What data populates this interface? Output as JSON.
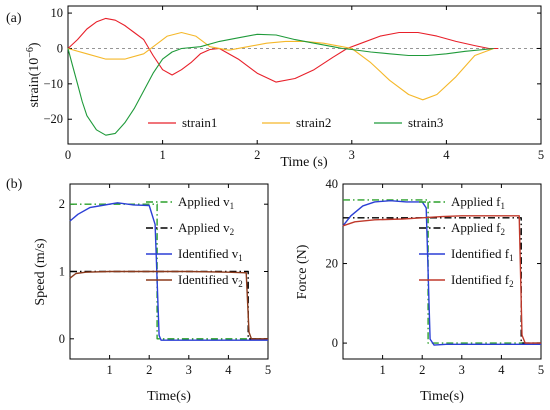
{
  "chart_data": [
    {
      "type": "line",
      "panel_label": "(a)",
      "xlabel": "Time (s)",
      "ylabel": "strain(10",
      "ylabel_exponent": "−6",
      "ylabel_close": ")",
      "xlim": [
        0,
        5
      ],
      "ylim": [
        -27,
        12
      ],
      "xticks": [
        "0",
        "1",
        "2",
        "3",
        "4",
        "5"
      ],
      "yticks": [
        "10",
        "0",
        "−10",
        "−20"
      ],
      "legend_position": "bottom-center",
      "series": [
        {
          "name": "strain1",
          "color": "#e8202a",
          "x": [
            0,
            0.1,
            0.2,
            0.3,
            0.4,
            0.5,
            0.6,
            0.7,
            0.8,
            0.9,
            1.0,
            1.1,
            1.2,
            1.3,
            1.4,
            1.5,
            1.6,
            1.8,
            2.0,
            2.2,
            2.4,
            2.6,
            2.8,
            2.95,
            3.1,
            3.3,
            3.5,
            3.7,
            3.9,
            4.1,
            4.3,
            4.45,
            4.55
          ],
          "y": [
            0,
            2.5,
            5.5,
            7.5,
            8.5,
            8.0,
            6.5,
            4.5,
            2.5,
            -2.0,
            -6.0,
            -7.5,
            -6.0,
            -4.0,
            -1.5,
            -0.3,
            0,
            -3,
            -7,
            -9.5,
            -8.5,
            -6,
            -2.5,
            0,
            1.5,
            3.5,
            4.5,
            4.5,
            3.5,
            2,
            0.8,
            0,
            0
          ]
        },
        {
          "name": "strain2",
          "color": "#f5b82a",
          "x": [
            0,
            0.2,
            0.4,
            0.6,
            0.8,
            0.95,
            1.05,
            1.2,
            1.35,
            1.5,
            1.7,
            1.9,
            2.1,
            2.3,
            2.5,
            2.7,
            2.9,
            3.0,
            3.2,
            3.4,
            3.6,
            3.75,
            3.9,
            4.1,
            4.3,
            4.5
          ],
          "y": [
            0,
            -1.5,
            -3,
            -3,
            -1.5,
            1.5,
            3.5,
            4.5,
            3.5,
            0.5,
            -0.5,
            0.5,
            1.5,
            2.0,
            2.0,
            1.5,
            0.5,
            0,
            -4,
            -9,
            -13,
            -14.5,
            -13,
            -8,
            -2,
            0
          ]
        },
        {
          "name": "strain3",
          "color": "#1f9a3a",
          "x": [
            0,
            0.05,
            0.1,
            0.15,
            0.2,
            0.3,
            0.4,
            0.5,
            0.6,
            0.7,
            0.8,
            0.9,
            1.0,
            1.1,
            1.2,
            1.4,
            1.6,
            1.8,
            2.0,
            2.2,
            2.4,
            2.6,
            2.8,
            2.9,
            3.0,
            3.2,
            3.4,
            3.6,
            3.8,
            4.0,
            4.2,
            4.4,
            4.5
          ],
          "y": [
            0,
            -5,
            -10,
            -15,
            -19,
            -23,
            -24.5,
            -24,
            -21,
            -17,
            -12,
            -7,
            -3,
            -1,
            0,
            0.5,
            2,
            3,
            4,
            3.8,
            2.5,
            1.5,
            0.5,
            0,
            -0.3,
            -1,
            -1.5,
            -2,
            -2,
            -1.5,
            -0.8,
            -0.3,
            0
          ]
        }
      ]
    },
    {
      "type": "line",
      "panel_label": "(b)",
      "xlabel": "Time(s)",
      "ylabel": "Speed (m/s)",
      "xlim": [
        0,
        5
      ],
      "ylim": [
        -0.3,
        2.3
      ],
      "xticks": [
        "1",
        "2",
        "3",
        "4",
        "5"
      ],
      "yticks": [
        "0",
        "1",
        "2"
      ],
      "legend_position": "right",
      "series": [
        {
          "name": "Applied v",
          "subscript": "1",
          "color": "#2ca02c",
          "dash": "dashdot",
          "x": [
            0,
            2.2,
            2.2,
            5
          ],
          "y": [
            2,
            2,
            0,
            0
          ]
        },
        {
          "name": "Applied v",
          "subscript": "2",
          "color": "#000000",
          "dash": "dashdot",
          "x": [
            0,
            4.5,
            4.5,
            5
          ],
          "y": [
            1,
            1,
            0,
            0
          ]
        },
        {
          "name": "Identified v",
          "subscript": "1",
          "color": "#2b3fd6",
          "dash": "solid",
          "x": [
            0,
            0.2,
            0.5,
            0.8,
            1.2,
            1.6,
            2.0,
            2.15,
            2.25,
            2.3,
            2.6,
            3.0,
            4.0,
            5.0
          ],
          "y": [
            1.75,
            1.85,
            1.95,
            1.98,
            2.02,
            1.99,
            1.98,
            1.7,
            0.05,
            -0.02,
            -0.02,
            -0.02,
            -0.02,
            -0.02
          ]
        },
        {
          "name": "Identified v",
          "subscript": "2",
          "color": "#8b3a1c",
          "dash": "solid",
          "x": [
            0,
            0.15,
            0.4,
            1.0,
            2.0,
            3.0,
            4.0,
            4.45,
            4.52,
            4.58,
            5.0
          ],
          "y": [
            0.9,
            0.97,
            0.99,
            1.0,
            1.0,
            1.0,
            0.99,
            0.98,
            0.1,
            0.0,
            0.0
          ]
        }
      ]
    },
    {
      "type": "line",
      "xlabel": "Time(s)",
      "ylabel": "Force (N)",
      "xlim": [
        0,
        5
      ],
      "ylim": [
        -4,
        40
      ],
      "xticks": [
        "1",
        "2",
        "3",
        "4",
        "5"
      ],
      "yticks": [
        "0",
        "20",
        "40"
      ],
      "legend_position": "right",
      "series": [
        {
          "name": "Applied f",
          "subscript": "1",
          "color": "#2ca02c",
          "dash": "dashdot",
          "x": [
            0,
            2.15,
            2.15,
            5
          ],
          "y": [
            36,
            36,
            0,
            0
          ]
        },
        {
          "name": "Applied f",
          "subscript": "2",
          "color": "#000000",
          "dash": "dashdot",
          "x": [
            0,
            4.5,
            4.5,
            5
          ],
          "y": [
            31.5,
            31.5,
            0,
            0
          ]
        },
        {
          "name": "Identified f",
          "subscript": "1",
          "color": "#2b3fd6",
          "dash": "solid",
          "x": [
            0,
            0.2,
            0.5,
            0.8,
            1.2,
            1.6,
            2.0,
            2.1,
            2.2,
            2.3,
            2.6,
            3.0,
            4.0,
            4.5,
            5.0
          ],
          "y": [
            29.5,
            32,
            34.5,
            35.5,
            35.8,
            35.5,
            35.5,
            34,
            1,
            -0.5,
            -0.3,
            -0.3,
            -0.3,
            -0.3,
            -0.3
          ]
        },
        {
          "name": "Identified f",
          "subscript": "2",
          "color": "#c0392b",
          "dash": "solid",
          "x": [
            0,
            0.3,
            0.8,
            1.5,
            2.0,
            2.5,
            3.0,
            3.5,
            4.0,
            4.45,
            4.52,
            4.6,
            5.0
          ],
          "y": [
            29.5,
            30.5,
            31,
            31.2,
            31.5,
            31.8,
            32,
            32,
            32,
            32,
            2,
            0,
            0
          ]
        }
      ]
    }
  ]
}
